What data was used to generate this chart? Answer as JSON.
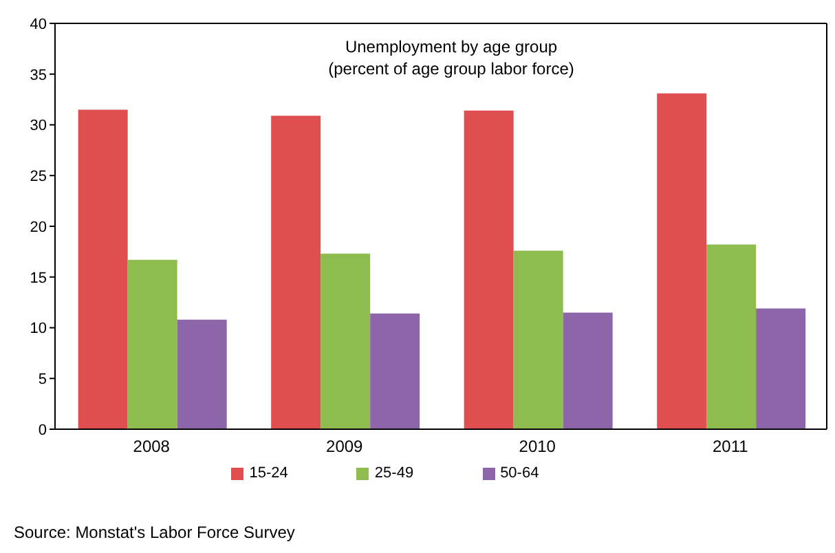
{
  "chart_data": {
    "type": "bar",
    "title": "Unemployment by age group",
    "subtitle": "(percent of age group labor force)",
    "categories": [
      "2008",
      "2009",
      "2010",
      "2011"
    ],
    "series": [
      {
        "name": "15-24",
        "color": "#e04f4f",
        "values": [
          31.5,
          30.9,
          31.4,
          33.1
        ]
      },
      {
        "name": "25-49",
        "color": "#8fbc4f",
        "values": [
          16.7,
          17.3,
          17.6,
          18.2
        ]
      },
      {
        "name": "50-64",
        "color": "#8c66a8",
        "values": [
          10.8,
          11.4,
          11.5,
          11.9
        ]
      }
    ],
    "ylim": [
      0,
      40
    ],
    "yticks": [
      0,
      5,
      10,
      15,
      20,
      25,
      30,
      35,
      40
    ],
    "grid": false,
    "legend": "bottom",
    "annotations": [
      "Source: Monstat's Labor Force Survey"
    ]
  }
}
